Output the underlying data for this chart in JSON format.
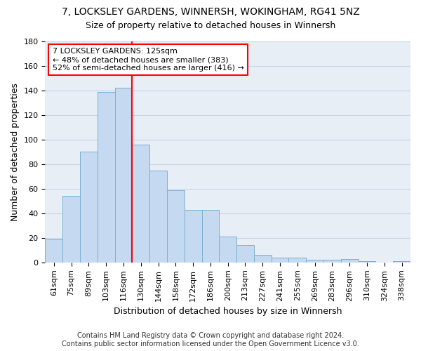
{
  "title": "7, LOCKSLEY GARDENS, WINNERSH, WOKINGHAM, RG41 5NZ",
  "subtitle": "Size of property relative to detached houses in Winnersh",
  "xlabel": "Distribution of detached houses by size in Winnersh",
  "ylabel": "Number of detached properties",
  "categories": [
    "61sqm",
    "75sqm",
    "89sqm",
    "103sqm",
    "116sqm",
    "130sqm",
    "144sqm",
    "158sqm",
    "172sqm",
    "186sqm",
    "200sqm",
    "213sqm",
    "227sqm",
    "241sqm",
    "255sqm",
    "269sqm",
    "283sqm",
    "296sqm",
    "310sqm",
    "324sqm",
    "338sqm"
  ],
  "values": [
    19,
    54,
    90,
    139,
    142,
    96,
    75,
    59,
    43,
    43,
    21,
    14,
    6,
    4,
    4,
    2,
    2,
    3,
    1,
    0,
    1
  ],
  "bar_color": "#c5d9f0",
  "bar_edge_color": "#7bafd4",
  "grid_color": "#c8d4e4",
  "background_color": "#e8eef6",
  "vline_x": 5.0,
  "vline_color": "red",
  "annotation_text": "7 LOCKSLEY GARDENS: 125sqm\n← 48% of detached houses are smaller (383)\n52% of semi-detached houses are larger (416) →",
  "annotation_box_color": "white",
  "annotation_box_edge_color": "red",
  "ylim": [
    0,
    180
  ],
  "yticks": [
    0,
    20,
    40,
    60,
    80,
    100,
    120,
    140,
    160,
    180
  ],
  "footer_line1": "Contains HM Land Registry data © Crown copyright and database right 2024.",
  "footer_line2": "Contains public sector information licensed under the Open Government Licence v3.0.",
  "title_fontsize": 10,
  "subtitle_fontsize": 9,
  "axis_label_fontsize": 9,
  "tick_fontsize": 8,
  "annotation_fontsize": 8,
  "footer_fontsize": 7
}
